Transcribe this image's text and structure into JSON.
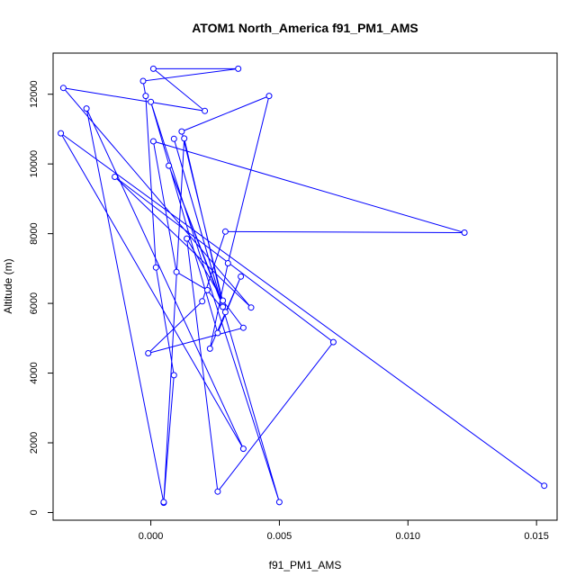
{
  "chart_data": {
    "type": "line",
    "title": "ATOM1 North_America f91_PM1_AMS",
    "xlabel": "f91_PM1_AMS",
    "ylabel": "Altitude (m)",
    "xlim": [
      -0.0038,
      0.0158
    ],
    "ylim": [
      -220,
      13180
    ],
    "xticks": [
      0.0,
      0.005,
      0.01,
      0.015
    ],
    "xtick_labels": [
      "0.000",
      "0.005",
      "0.010",
      "0.015"
    ],
    "yticks": [
      0,
      2000,
      4000,
      6000,
      8000,
      10000,
      12000
    ],
    "ytick_labels": [
      "0",
      "2000",
      "4000",
      "6000",
      "8000",
      "10000",
      "12000"
    ],
    "grid": false,
    "series": [
      {
        "color": "#0000ff",
        "marker": "open-circle",
        "points": [
          {
            "x": 0.0153,
            "y": 770
          },
          {
            "x": -0.0035,
            "y": 10880
          },
          {
            "x": 0.0036,
            "y": 1830
          },
          {
            "x": -0.0025,
            "y": 11590
          },
          {
            "x": 0.0005,
            "y": 280
          },
          {
            "x": 0.0013,
            "y": 10730
          },
          {
            "x": 0.0028,
            "y": 5950
          },
          {
            "x": 0.0007,
            "y": 9950
          },
          {
            "x": 0.0028,
            "y": 5900
          },
          {
            "x": 0.0009,
            "y": 10720
          },
          {
            "x": 0.005,
            "y": 300
          },
          {
            "x": 0.0,
            "y": 11780
          },
          {
            "x": 0.0026,
            "y": 5150
          },
          {
            "x": 0.0035,
            "y": 6770
          },
          {
            "x": 0.0023,
            "y": 4700
          },
          {
            "x": 0.003,
            "y": 7150
          },
          {
            "x": 0.0046,
            "y": 11950
          },
          {
            "x": 0.0012,
            "y": 10930
          },
          {
            "x": 0.0029,
            "y": 5750
          },
          {
            "x": 0.0022,
            "y": 6380
          },
          {
            "x": 0.001,
            "y": 6900
          },
          {
            "x": 0.0001,
            "y": 10650
          },
          {
            "x": 0.0122,
            "y": 8030
          },
          {
            "x": 0.0029,
            "y": 8060
          },
          {
            "x": 0.002,
            "y": 6060
          },
          {
            "x": -0.0001,
            "y": 4570
          },
          {
            "x": 0.0036,
            "y": 5300
          },
          {
            "x": 0.0028,
            "y": 6080
          },
          {
            "x": 0.0014,
            "y": 7860
          },
          {
            "x": 0.0026,
            "y": 600
          },
          {
            "x": 0.0071,
            "y": 4890
          },
          {
            "x": -0.0014,
            "y": 9630
          },
          {
            "x": 0.0039,
            "y": 5880
          },
          {
            "x": -0.0034,
            "y": 12180
          },
          {
            "x": 0.0021,
            "y": 11520
          },
          {
            "x": 0.0001,
            "y": 12730
          },
          {
            "x": 0.0034,
            "y": 12730
          },
          {
            "x": -0.0003,
            "y": 12380
          },
          {
            "x": -0.0002,
            "y": 11950
          },
          {
            "x": 0.0002,
            "y": 7030
          },
          {
            "x": 0.0009,
            "y": 3940
          },
          {
            "x": 0.0005,
            "y": 300
          }
        ]
      }
    ]
  }
}
